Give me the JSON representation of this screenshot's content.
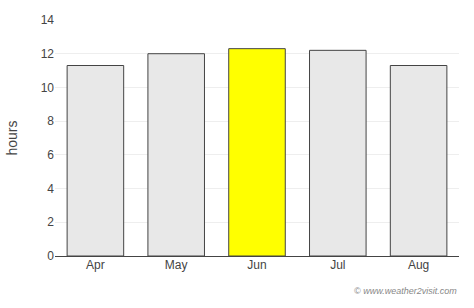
{
  "chart_data": {
    "type": "bar",
    "categories": [
      "Apr",
      "May",
      "Jun",
      "Jul",
      "Aug"
    ],
    "values": [
      11.3,
      12.0,
      12.3,
      12.2,
      11.3
    ],
    "colors": [
      "#e8e8e8",
      "#e8e8e8",
      "#ffff00",
      "#e8e8e8",
      "#e8e8e8"
    ],
    "ylabel": "hours",
    "ylim": [
      0,
      14
    ],
    "yticks": [
      0,
      2,
      4,
      6,
      8,
      10,
      12,
      14
    ],
    "grid": true,
    "annotations": [
      "© www.weather2visit.com"
    ]
  }
}
